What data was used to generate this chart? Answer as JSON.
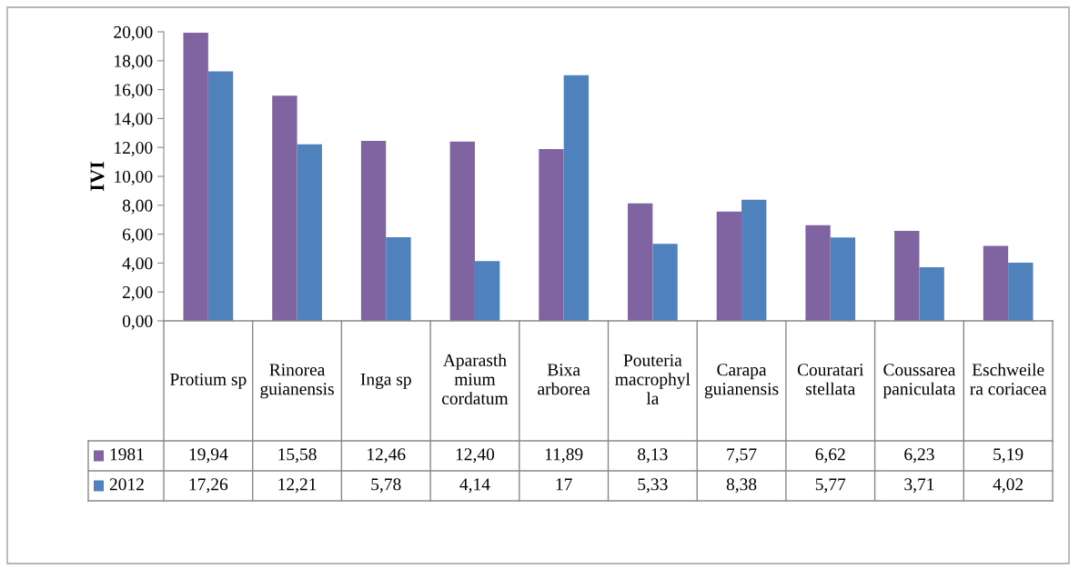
{
  "chart_data": {
    "type": "bar",
    "ylabel": "IVI",
    "categories": [
      "Protium sp",
      "Rinorea guianensis",
      "Inga sp",
      "Aparasthmium cordatum",
      "Bixa arborea",
      "Pouteria macrophylla",
      "Carapa guianensis",
      "Couratari stellata",
      "Coussarea paniculata",
      "Eschweilera coriacea"
    ],
    "series": [
      {
        "name": "1981",
        "color": "#8064a2",
        "values": [
          19.94,
          15.58,
          12.46,
          12.4,
          11.89,
          8.13,
          7.57,
          6.62,
          6.23,
          5.19
        ],
        "value_labels": [
          "19,94",
          "15,58",
          "12,46",
          "12,40",
          "11,89",
          "8,13",
          "7,57",
          "6,62",
          "6,23",
          "5,19"
        ]
      },
      {
        "name": "2012",
        "color": "#4f81bd",
        "values": [
          17.26,
          12.21,
          5.78,
          4.14,
          17,
          5.33,
          8.38,
          5.77,
          3.71,
          4.02
        ],
        "value_labels": [
          "17,26",
          "12,21",
          "5,78",
          "4,14",
          "17",
          "5,33",
          "8,38",
          "5,77",
          "3,71",
          "4,02"
        ]
      }
    ],
    "ylim": [
      0,
      20
    ],
    "yticks": [
      {
        "value": 0,
        "label": "0,00"
      },
      {
        "value": 2,
        "label": "2,00"
      },
      {
        "value": 4,
        "label": "4,00"
      },
      {
        "value": 6,
        "label": "6,00"
      },
      {
        "value": 8,
        "label": "8,00"
      },
      {
        "value": 10,
        "label": "10,00"
      },
      {
        "value": 12,
        "label": "12,00"
      },
      {
        "value": 14,
        "label": "14,00"
      },
      {
        "value": 16,
        "label": "16,00"
      },
      {
        "value": 18,
        "label": "18,00"
      },
      {
        "value": 20,
        "label": "20,00"
      }
    ],
    "grid": false,
    "legend": "left"
  }
}
